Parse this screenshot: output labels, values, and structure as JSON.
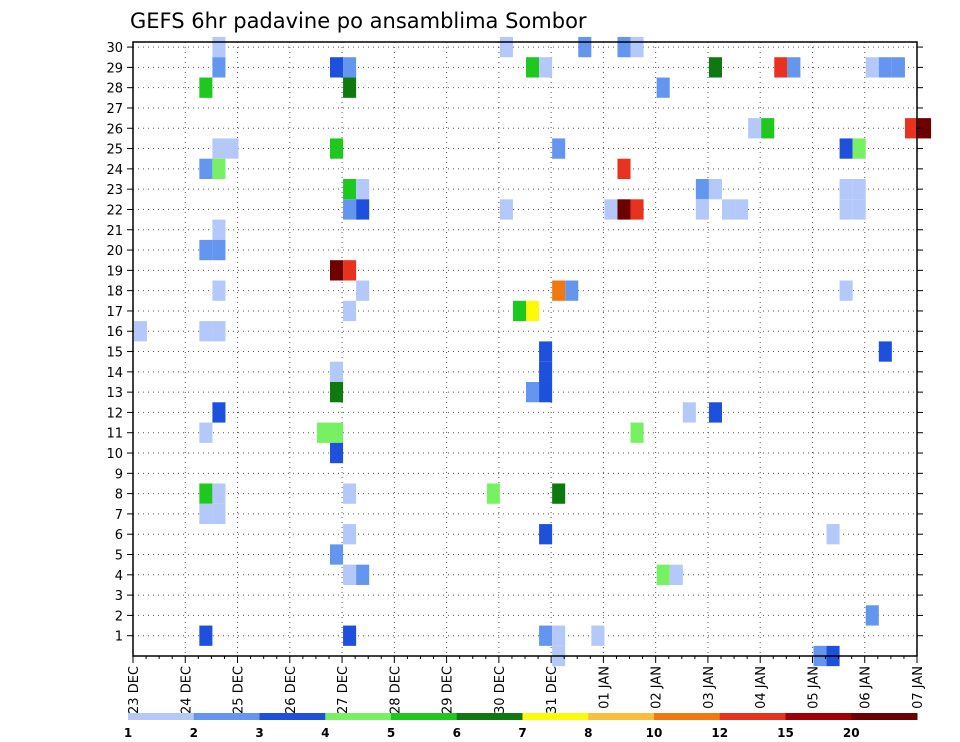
{
  "chart_data": {
    "type": "heatmap",
    "title": "GEFS 6hr padavine po ansamblima Sombor",
    "xlabel": "",
    "ylabel": "",
    "x_ticks": [
      "23 DEC",
      "24 DEC",
      "25 DEC",
      "26 DEC",
      "27 DEC",
      "28 DEC",
      "29 DEC",
      "30 DEC",
      "31 DEC",
      "01 JAN",
      "02 JAN",
      "03 JAN",
      "04 JAN",
      "05 JAN",
      "06 JAN",
      "07 JAN"
    ],
    "x_step_hours": 6,
    "y_ticks": [
      "1",
      "2",
      "3",
      "4",
      "5",
      "6",
      "7",
      "8",
      "9",
      "10",
      "11",
      "12",
      "13",
      "14",
      "15",
      "16",
      "17",
      "18",
      "19",
      "20",
      "21",
      "22",
      "23",
      "24",
      "25",
      "26",
      "27",
      "28",
      "29",
      "30"
    ],
    "ylim": [
      0,
      30
    ],
    "grid": true,
    "legend": {
      "placement": "bottom",
      "labels": [
        "1",
        "2",
        "3",
        "4",
        "5",
        "6",
        "7",
        "8",
        "10",
        "12",
        "15",
        "20"
      ],
      "colors": [
        "#b4c8fa",
        "#6496f0",
        "#1e50dc",
        "#78f064",
        "#1ec81e",
        "#0f780f",
        "#fafa0a",
        "#fabe3c",
        "#f0780f",
        "#e6321e",
        "#a00000",
        "#6e0000"
      ]
    },
    "cells": [
      {
        "t": 1.5,
        "member": 30,
        "level": 1
      },
      {
        "t": 1.5,
        "member": 29,
        "level": 2
      },
      {
        "t": 1.25,
        "member": 28,
        "level": 5
      },
      {
        "t": 1.5,
        "member": 25,
        "level": 1
      },
      {
        "t": 1.75,
        "member": 25,
        "level": 1
      },
      {
        "t": 1.25,
        "member": 24,
        "level": 2
      },
      {
        "t": 1.5,
        "member": 24,
        "level": 4
      },
      {
        "t": 1.5,
        "member": 21,
        "level": 1
      },
      {
        "t": 1.25,
        "member": 20,
        "level": 2
      },
      {
        "t": 1.5,
        "member": 20,
        "level": 2
      },
      {
        "t": 1.5,
        "member": 18,
        "level": 1
      },
      {
        "t": 1.25,
        "member": 16,
        "level": 1
      },
      {
        "t": 1.5,
        "member": 16,
        "level": 1
      },
      {
        "t": 0,
        "member": 16,
        "level": 1
      },
      {
        "t": 1.5,
        "member": 12,
        "level": 3
      },
      {
        "t": 1.25,
        "member": 11,
        "level": 1
      },
      {
        "t": 1.25,
        "member": 8,
        "level": 5
      },
      {
        "t": 1.5,
        "member": 8,
        "level": 1
      },
      {
        "t": 1.25,
        "member": 7,
        "level": 1
      },
      {
        "t": 1.5,
        "member": 7,
        "level": 1
      },
      {
        "t": 1.25,
        "member": 1,
        "level": 3
      },
      {
        "t": 3.75,
        "member": 29,
        "level": 3
      },
      {
        "t": 4.0,
        "member": 29,
        "level": 2
      },
      {
        "t": 4.0,
        "member": 28,
        "level": 6
      },
      {
        "t": 3.75,
        "member": 25,
        "level": 5
      },
      {
        "t": 4.0,
        "member": 23,
        "level": 5
      },
      {
        "t": 4.25,
        "member": 23,
        "level": 1
      },
      {
        "t": 4.0,
        "member": 22,
        "level": 2
      },
      {
        "t": 4.25,
        "member": 22,
        "level": 3
      },
      {
        "t": 3.75,
        "member": 19,
        "level": 12
      },
      {
        "t": 4.0,
        "member": 19,
        "level": 10
      },
      {
        "t": 4.25,
        "member": 18,
        "level": 1
      },
      {
        "t": 4.0,
        "member": 17,
        "level": 1
      },
      {
        "t": 3.75,
        "member": 14,
        "level": 1
      },
      {
        "t": 3.75,
        "member": 13,
        "level": 6
      },
      {
        "t": 3.5,
        "member": 11,
        "level": 4
      },
      {
        "t": 3.75,
        "member": 11,
        "level": 4
      },
      {
        "t": 3.75,
        "member": 10,
        "level": 3
      },
      {
        "t": 4.0,
        "member": 8,
        "level": 1
      },
      {
        "t": 4.0,
        "member": 6,
        "level": 1
      },
      {
        "t": 3.75,
        "member": 5,
        "level": 2
      },
      {
        "t": 4.0,
        "member": 4,
        "level": 1
      },
      {
        "t": 4.25,
        "member": 4,
        "level": 2
      },
      {
        "t": 4.0,
        "member": 1,
        "level": 3
      },
      {
        "t": 7.0,
        "member": 30,
        "level": 1
      },
      {
        "t": 7.5,
        "member": 29,
        "level": 5
      },
      {
        "t": 7.75,
        "member": 29,
        "level": 1
      },
      {
        "t": 7.0,
        "member": 22,
        "level": 1
      },
      {
        "t": 8.0,
        "member": 25,
        "level": 2
      },
      {
        "t": 8.0,
        "member": 18,
        "level": 9
      },
      {
        "t": 8.25,
        "member": 18,
        "level": 2
      },
      {
        "t": 7.25,
        "member": 17,
        "level": 5
      },
      {
        "t": 7.5,
        "member": 17,
        "level": 7
      },
      {
        "t": 7.75,
        "member": 15,
        "level": 3
      },
      {
        "t": 7.75,
        "member": 14,
        "level": 3
      },
      {
        "t": 7.5,
        "member": 13,
        "level": 2
      },
      {
        "t": 7.75,
        "member": 13,
        "level": 3
      },
      {
        "t": 6.75,
        "member": 8,
        "level": 4
      },
      {
        "t": 8.0,
        "member": 8,
        "level": 6
      },
      {
        "t": 7.75,
        "member": 6,
        "level": 3
      },
      {
        "t": 7.75,
        "member": 1,
        "level": 2
      },
      {
        "t": 8.0,
        "member": 1,
        "level": 1
      },
      {
        "t": 8.0,
        "member": 0,
        "level": 1
      },
      {
        "t": 8.5,
        "member": 30,
        "level": 2
      },
      {
        "t": 9.25,
        "member": 30,
        "level": 2
      },
      {
        "t": 9.5,
        "member": 30,
        "level": 1
      },
      {
        "t": 10.0,
        "member": 28,
        "level": 2
      },
      {
        "t": 9.25,
        "member": 24,
        "level": 10
      },
      {
        "t": 9.0,
        "member": 22,
        "level": 1
      },
      {
        "t": 9.25,
        "member": 22,
        "level": 12
      },
      {
        "t": 9.5,
        "member": 22,
        "level": 10
      },
      {
        "t": 9.5,
        "member": 11,
        "level": 4
      },
      {
        "t": 10.0,
        "member": 4,
        "level": 4
      },
      {
        "t": 10.25,
        "member": 4,
        "level": 1
      },
      {
        "t": 8.75,
        "member": 1,
        "level": 1
      },
      {
        "t": 11.0,
        "member": 29,
        "level": 6
      },
      {
        "t": 12.25,
        "member": 29,
        "level": 10
      },
      {
        "t": 12.5,
        "member": 29,
        "level": 2
      },
      {
        "t": 11.75,
        "member": 26,
        "level": 1
      },
      {
        "t": 12.0,
        "member": 26,
        "level": 5
      },
      {
        "t": 10.75,
        "member": 23,
        "level": 2
      },
      {
        "t": 11.0,
        "member": 23,
        "level": 1
      },
      {
        "t": 10.75,
        "member": 22,
        "level": 1
      },
      {
        "t": 11.25,
        "member": 22,
        "level": 1
      },
      {
        "t": 11.5,
        "member": 22,
        "level": 1
      },
      {
        "t": 10.5,
        "member": 12,
        "level": 1
      },
      {
        "t": 11.0,
        "member": 12,
        "level": 3
      },
      {
        "t": 13.5,
        "member": 25,
        "level": 3
      },
      {
        "t": 13.75,
        "member": 25,
        "level": 4
      },
      {
        "t": 13.5,
        "member": 23,
        "level": 1
      },
      {
        "t": 13.75,
        "member": 23,
        "level": 1
      },
      {
        "t": 13.5,
        "member": 22,
        "level": 1
      },
      {
        "t": 13.75,
        "member": 22,
        "level": 1
      },
      {
        "t": 13.5,
        "member": 18,
        "level": 1
      },
      {
        "t": 13.25,
        "member": 6,
        "level": 1
      },
      {
        "t": 13.0,
        "member": 0,
        "level": 2
      },
      {
        "t": 13.25,
        "member": 0,
        "level": 3
      },
      {
        "t": 14.0,
        "member": 29,
        "level": 1
      },
      {
        "t": 14.25,
        "member": 29,
        "level": 2
      },
      {
        "t": 14.5,
        "member": 29,
        "level": 2
      },
      {
        "t": 14.75,
        "member": 26,
        "level": 10
      },
      {
        "t": 15.0,
        "member": 26,
        "level": 12
      },
      {
        "t": 14.25,
        "member": 15,
        "level": 3
      },
      {
        "t": 14.0,
        "member": 2,
        "level": 2
      }
    ]
  }
}
